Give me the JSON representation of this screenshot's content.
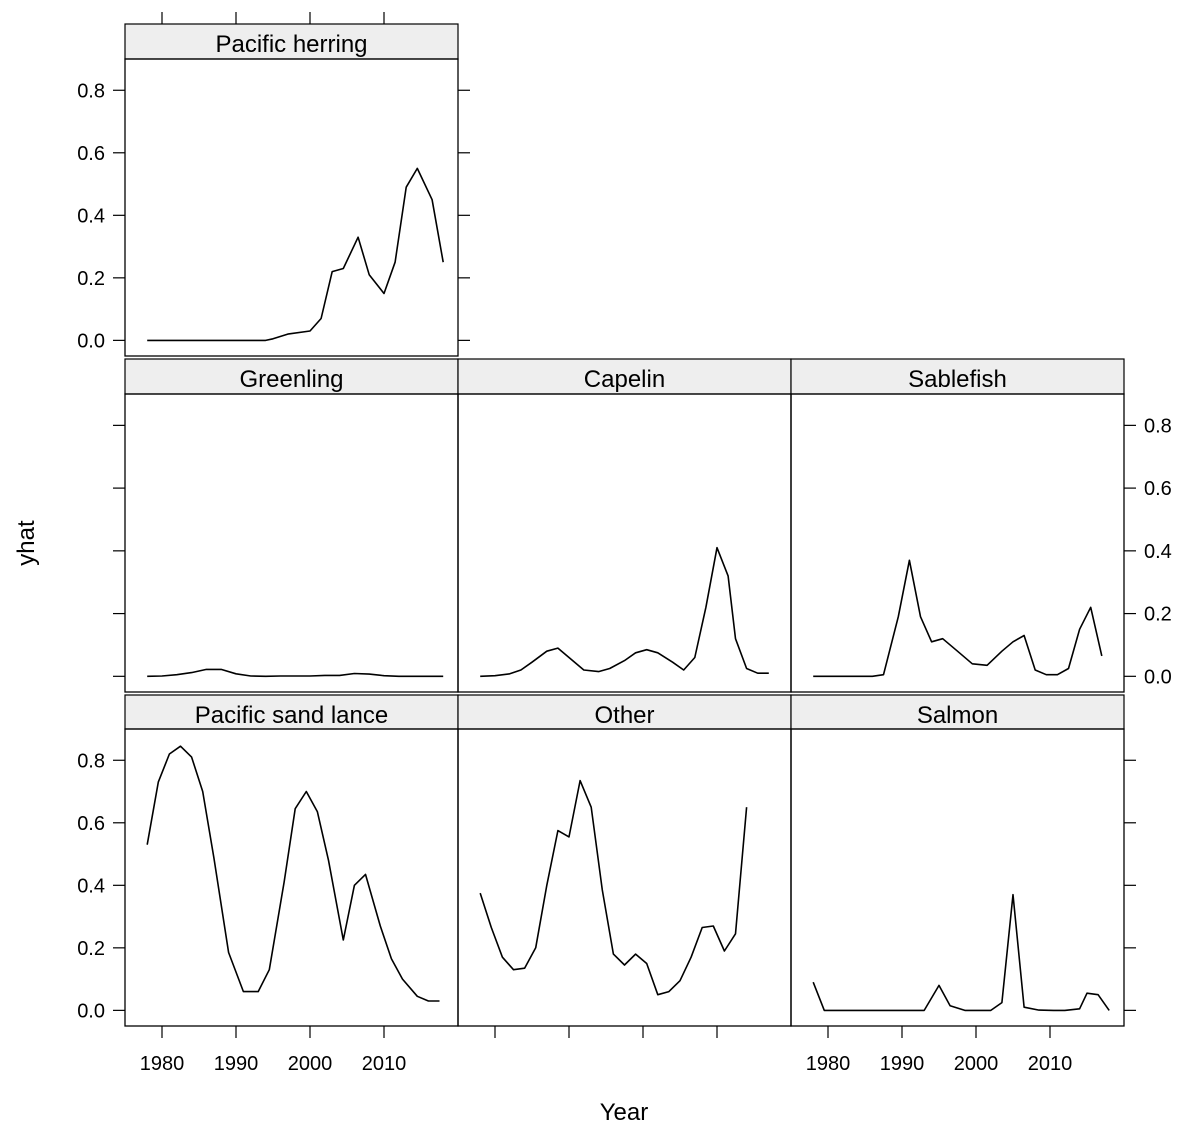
{
  "chart_data": {
    "type": "line",
    "xlabel": "Year",
    "ylabel": "yhat",
    "xlim": [
      1975,
      2020
    ],
    "ylim": [
      -0.05,
      0.9
    ],
    "x_ticks": [
      1980,
      1990,
      2000,
      2010
    ],
    "y_ticks": [
      0.0,
      0.2,
      0.4,
      0.6,
      0.8
    ],
    "x": [
      1978,
      1980,
      1982,
      1984,
      1986,
      1988,
      1990,
      1992,
      1994,
      1996,
      1998,
      2000,
      2002,
      2004,
      2006,
      2008,
      2010,
      2012,
      2014,
      2016,
      2018
    ],
    "panels": [
      {
        "title": "Pacific herring",
        "values": [
          0,
          0,
          0,
          0,
          0,
          0,
          0,
          0,
          0.0,
          0.005,
          0.02,
          0.03,
          0.07,
          0.22,
          0.23,
          0.33,
          0.21,
          0.15,
          0.25,
          0.49,
          0.55,
          0.45,
          0.25
        ],
        "x": [
          1978,
          1980,
          1982,
          1984,
          1986,
          1988,
          1990,
          1992,
          1994,
          1995,
          1997,
          2000,
          2001.5,
          2003,
          2004.5,
          2006.5,
          2008,
          2010,
          2011.5,
          2013,
          2014.5,
          2016.5,
          2018
        ]
      },
      {
        "title": "Greenling",
        "values": [
          0,
          0.001,
          0.005,
          0.012,
          0.022,
          0.022,
          0.008,
          0.001,
          0,
          0.001,
          0.001,
          0.001,
          0.003,
          0.003,
          0.009,
          0.007,
          0.002,
          0,
          0,
          0,
          0
        ]
      },
      {
        "title": "Capelin",
        "values": [
          0,
          0.002,
          0.008,
          0.02,
          0.045,
          0.08,
          0.09,
          0.05,
          0.02,
          0.015,
          0.025,
          0.05,
          0.075,
          0.085,
          0.075,
          0.045,
          0.02,
          0.06,
          0.22,
          0.41,
          0.32,
          0.12,
          0.025,
          0.01,
          0.01
        ],
        "x": [
          1978,
          1980,
          1982,
          1983.5,
          1985,
          1987,
          1988.5,
          1990.5,
          1992,
          1994,
          1995.5,
          1997.5,
          1999,
          2000.5,
          2002,
          2004,
          2005.5,
          2007,
          2008.5,
          2010,
          2011.5,
          2012.5,
          2014,
          2015.5,
          2017
        ]
      },
      {
        "title": "Sablefish",
        "values": [
          0,
          0,
          0,
          0,
          0,
          0.005,
          0.19,
          0.37,
          0.19,
          0.11,
          0.12,
          0.08,
          0.04,
          0.035,
          0.08,
          0.11,
          0.13,
          0.02,
          0.005,
          0.005,
          0.025,
          0.15,
          0.22,
          0.065
        ],
        "x": [
          1978,
          1980,
          1982,
          1984,
          1986,
          1987.5,
          1989.5,
          1991,
          1992.5,
          1994,
          1995.5,
          1997.5,
          1999.5,
          2001.5,
          2003.5,
          2005,
          2006.5,
          2008,
          2009.5,
          2011,
          2012.5,
          2014,
          2015.5,
          2017
        ]
      },
      {
        "title": "Pacific sand lance",
        "values": [
          0.53,
          0.73,
          0.82,
          0.845,
          0.81,
          0.7,
          0.49,
          0.185,
          0.06,
          0.06,
          0.13,
          0.41,
          0.645,
          0.7,
          0.635,
          0.48,
          0.225,
          0.4,
          0.435,
          0.27,
          0.165,
          0.1,
          0.045,
          0.03,
          0.03
        ],
        "x": [
          1978,
          1979.5,
          1981,
          1982.5,
          1984,
          1985.5,
          1987,
          1989,
          1991,
          1993,
          1994.5,
          1996.5,
          1998,
          1999.5,
          2001,
          2002.5,
          2004.5,
          2006,
          2007.5,
          2009.5,
          2011,
          2012.5,
          2014.5,
          2016,
          2017.5
        ]
      },
      {
        "title": "Other",
        "values": [
          0.375,
          0.265,
          0.17,
          0.13,
          0.135,
          0.2,
          0.4,
          0.575,
          0.555,
          0.735,
          0.65,
          0.385,
          0.18,
          0.145,
          0.18,
          0.15,
          0.05,
          0.06,
          0.095,
          0.17,
          0.265,
          0.27,
          0.19,
          0.245,
          0.65
        ],
        "x": [
          1978,
          1979.5,
          1981,
          1982.5,
          1984,
          1985.5,
          1987,
          1988.5,
          1990,
          1991.5,
          1993,
          1994.5,
          1996,
          1997.5,
          1999,
          2000.5,
          2002,
          2003.5,
          2005,
          2006.5,
          2008,
          2009.5,
          2011,
          2012.5,
          2014
        ]
      },
      {
        "title": "Salmon",
        "values": [
          0.09,
          0,
          0,
          0,
          0,
          0,
          0,
          0,
          0,
          0.08,
          0.015,
          0,
          0,
          0,
          0.025,
          0.37,
          0.01,
          0.001,
          0,
          0,
          0.005,
          0.055,
          0.05,
          0
        ],
        "x": [
          1978,
          1979.5,
          1981.5,
          1983.5,
          1985.5,
          1987.5,
          1989.5,
          1991.5,
          1993,
          1995,
          1996.5,
          1998.5,
          2000.5,
          2002,
          2003.5,
          2005,
          2006.5,
          2008.5,
          2010.5,
          2012,
          2014,
          2015,
          2016.5,
          2018
        ]
      }
    ]
  }
}
